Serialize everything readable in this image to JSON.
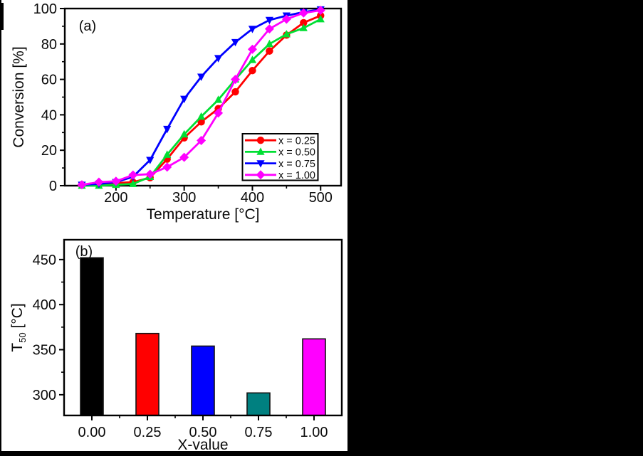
{
  "page": {
    "background": "#000000",
    "figure_background": "#ffffff",
    "text_color": "#0a0a0a",
    "axis_color": "#000000"
  },
  "chart_data": [
    {
      "id": "conversion-curves",
      "type": "line",
      "panel_label": "(a)",
      "xlabel": "Temperature [°C]",
      "ylabel": "Conversion [%]",
      "xlim": [
        125,
        530
      ],
      "ylim": [
        0,
        100
      ],
      "x_major_ticks": [
        200,
        300,
        400,
        500
      ],
      "x_minor_ticks": [
        150,
        250,
        350,
        450
      ],
      "y_major_ticks": [
        0,
        20,
        40,
        60,
        80,
        100
      ],
      "y_minor_ticks": [
        10,
        30,
        50,
        70,
        90
      ],
      "x": [
        150,
        175,
        200,
        225,
        250,
        275,
        300,
        325,
        350,
        375,
        400,
        425,
        450,
        475,
        500
      ],
      "series": [
        {
          "name": "x = 0.25",
          "color": "#ff0000",
          "marker": "circle",
          "values": [
            0.5,
            0.5,
            1.5,
            2,
            4.5,
            15,
            27,
            36,
            43.5,
            53,
            65,
            76,
            85,
            92,
            96
          ]
        },
        {
          "name": "x = 0.50",
          "color": "#00df33",
          "marker": "triangle-up",
          "values": [
            0,
            0,
            0.5,
            1,
            5,
            17.5,
            29,
            39,
            48.5,
            60,
            71,
            80,
            85.5,
            89,
            94
          ]
        },
        {
          "name": "x = 0.75",
          "color": "#0000ff",
          "marker": "triangle-down",
          "values": [
            0.5,
            1,
            2,
            5,
            14.5,
            32,
            49,
            61.5,
            72,
            81,
            88.5,
            93.5,
            96,
            98,
            99.5
          ]
        },
        {
          "name": "x = 1.00",
          "color": "#ff00ff",
          "marker": "diamond",
          "values": [
            0.5,
            2,
            2.5,
            6,
            6.5,
            10.5,
            16,
            25.5,
            41,
            60,
            77,
            88.5,
            94,
            97.5,
            99
          ]
        }
      ],
      "legend": {
        "position": "bottom-right",
        "entries": [
          "x = 0.25",
          "x = 0.50",
          "x = 0.75",
          "x = 1.00"
        ]
      }
    },
    {
      "id": "t50-bars",
      "type": "bar",
      "panel_label": "(b)",
      "xlabel": "X-value",
      "ylabel_parts": {
        "base": "T",
        "sub": "50",
        "unit": " [°C]"
      },
      "ylim": [
        277,
        472
      ],
      "y_major_ticks": [
        300,
        350,
        400,
        450
      ],
      "y_minor_ticks": [
        325,
        375,
        425
      ],
      "categories": [
        "0.00",
        "0.25",
        "0.50",
        "0.75",
        "1.00"
      ],
      "values": [
        452,
        368,
        354,
        302,
        362
      ],
      "colors": [
        "#000000",
        "#ff0000",
        "#0000ff",
        "#008080",
        "#ff00ff"
      ]
    }
  ]
}
